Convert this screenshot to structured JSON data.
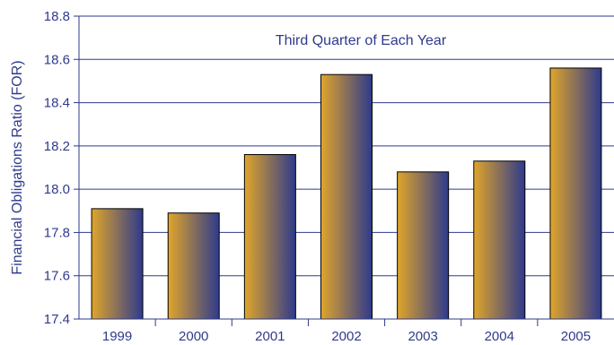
{
  "chart_data": {
    "type": "bar",
    "categories": [
      "1999",
      "2000",
      "2001",
      "2002",
      "2003",
      "2004",
      "2005"
    ],
    "values": [
      17.91,
      17.89,
      18.16,
      18.53,
      18.08,
      18.13,
      18.56
    ],
    "title": "",
    "annotation": "Third Quarter of Each Year",
    "xlabel": "",
    "ylabel": "Financial Obligations Ratio (FOR)",
    "ylim": [
      17.4,
      18.8
    ],
    "yticks": [
      "17.4",
      "17.6",
      "17.8",
      "18.0",
      "18.2",
      "18.4",
      "18.6",
      "18.8"
    ],
    "grid": true,
    "legend": "none",
    "colors": {
      "axis": "#2e3a8c",
      "gradient_start": "#e0a52a",
      "gradient_end": "#2e3a8c",
      "bar_outline": "#000000"
    }
  }
}
